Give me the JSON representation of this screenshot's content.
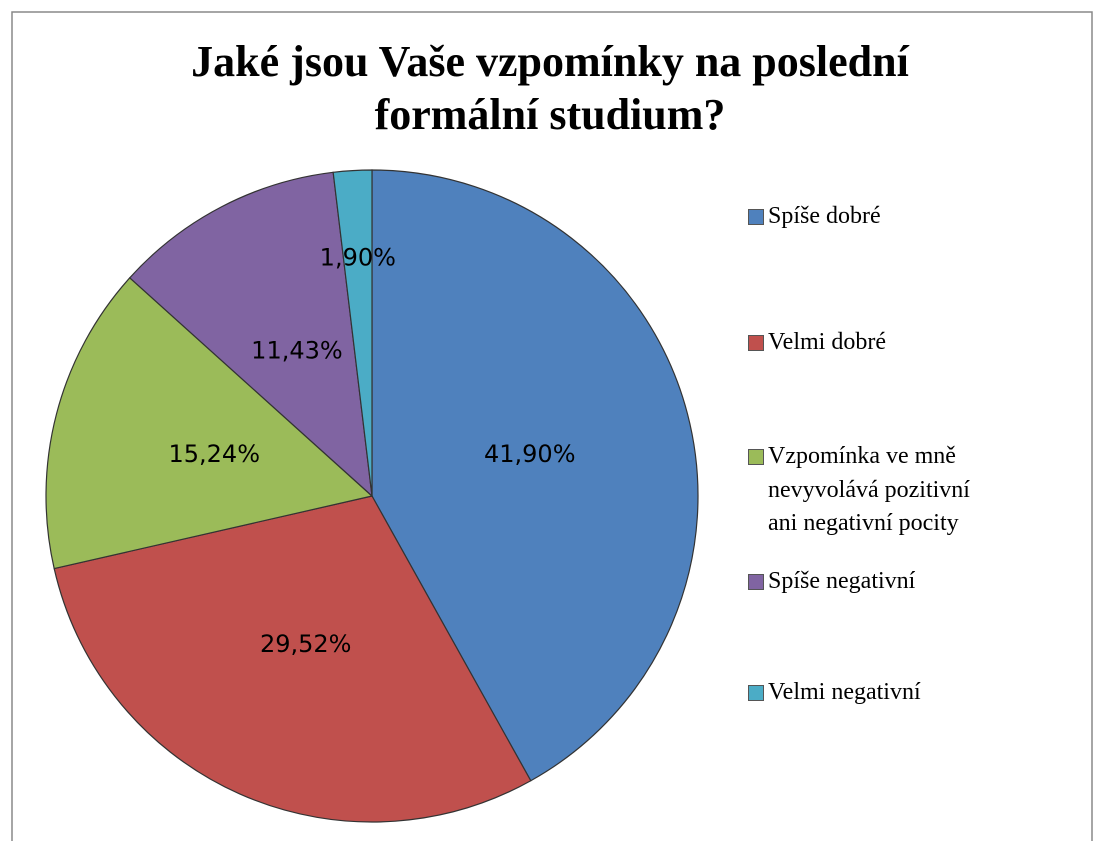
{
  "chart_data": {
    "type": "pie",
    "title": "Jaké jsou Vaše vzpomínky na poslední formální studium?",
    "categories": [
      "Spíše dobré",
      "Velmi dobré",
      "Vzpomínka ve mně nevyvolává pozitivní ani negativní pocity",
      "Spíše negativní",
      "Velmi negativní"
    ],
    "values": [
      41.9,
      29.52,
      15.24,
      11.43,
      1.9
    ],
    "value_labels": [
      "41,90%",
      "29,52%",
      "15,24%",
      "11,43%",
      "1,90%"
    ],
    "colors": [
      "#4f81bd",
      "#c0504d",
      "#9bbb59",
      "#8064a2",
      "#4bacc6"
    ],
    "legend": "right"
  }
}
